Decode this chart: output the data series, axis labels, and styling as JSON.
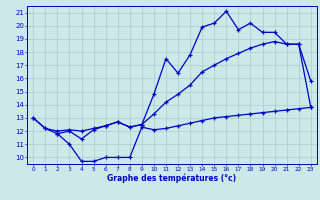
{
  "xlabel": "Graphe des températures (°c)",
  "bg_color": "#cce8e8",
  "line_color": "#0000cc",
  "grid_color": "#aacccc",
  "xlim": [
    -0.5,
    23.5
  ],
  "ylim": [
    9.5,
    21.5
  ],
  "yticks": [
    10,
    11,
    12,
    13,
    14,
    15,
    16,
    17,
    18,
    19,
    20,
    21
  ],
  "xticks": [
    0,
    1,
    2,
    3,
    4,
    5,
    6,
    7,
    8,
    9,
    10,
    11,
    12,
    13,
    14,
    15,
    16,
    17,
    18,
    19,
    20,
    21,
    22,
    23
  ],
  "line1_x": [
    0,
    1,
    2,
    3,
    4,
    5,
    6,
    7,
    8,
    9,
    10,
    11,
    12,
    13,
    14,
    15,
    16,
    17,
    18,
    19,
    20,
    21,
    22,
    23
  ],
  "line1_y": [
    13.0,
    12.2,
    11.8,
    12.0,
    11.4,
    12.1,
    12.4,
    12.7,
    12.3,
    12.5,
    14.8,
    17.5,
    16.4,
    17.8,
    19.9,
    20.2,
    21.1,
    19.7,
    20.2,
    19.5,
    19.5,
    18.6,
    18.6,
    15.8
  ],
  "line2_x": [
    0,
    1,
    2,
    3,
    4,
    5,
    6,
    7,
    8,
    9,
    10,
    11,
    12,
    13,
    14,
    15,
    16,
    17,
    18,
    19,
    20,
    21,
    22,
    23
  ],
  "line2_y": [
    13.0,
    12.2,
    12.0,
    12.1,
    12.0,
    12.2,
    12.4,
    12.7,
    12.3,
    12.5,
    13.3,
    14.2,
    14.8,
    15.5,
    16.5,
    17.0,
    17.5,
    17.9,
    18.3,
    18.6,
    18.8,
    18.6,
    18.6,
    13.8
  ],
  "line3_x": [
    2,
    3,
    4,
    5,
    6,
    7,
    8,
    9,
    10,
    11,
    12,
    13,
    14,
    15,
    16,
    17,
    18,
    19,
    20,
    21,
    22,
    23
  ],
  "line3_y": [
    11.8,
    11.0,
    9.7,
    9.7,
    10.0,
    10.0,
    10.0,
    12.3,
    12.1,
    12.2,
    12.4,
    12.6,
    12.8,
    13.0,
    13.1,
    13.2,
    13.3,
    13.4,
    13.5,
    13.6,
    13.7,
    13.8
  ]
}
